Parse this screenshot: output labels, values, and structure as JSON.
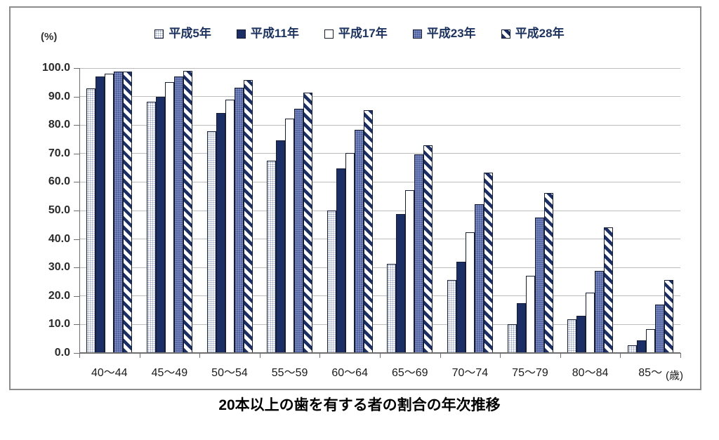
{
  "chart_data": {
    "type": "bar",
    "title": "20本以上の歯を有する者の割合の年次推移",
    "y_unit_label": "(%)",
    "x_unit_label": "(歳)",
    "ylim": [
      0,
      100
    ],
    "ytick_step": 10,
    "ytick_labels": [
      "0.0",
      "10.0",
      "20.0",
      "30.0",
      "40.0",
      "50.0",
      "60.0",
      "70.0",
      "80.0",
      "90.0",
      "100.0"
    ],
    "grid": true,
    "legend_position": "top",
    "categories": [
      "40〜44",
      "45〜49",
      "50〜54",
      "55〜59",
      "60〜64",
      "65〜69",
      "70〜74",
      "75〜79",
      "80〜84",
      "85〜"
    ],
    "series": [
      {
        "name": "平成5年",
        "pattern": "dots-light",
        "values": [
          92.9,
          88.1,
          77.9,
          67.5,
          49.9,
          31.4,
          25.5,
          10.0,
          11.7,
          2.8
        ]
      },
      {
        "name": "平成11年",
        "pattern": "solid-navy",
        "values": [
          97.1,
          90.0,
          84.3,
          74.6,
          64.9,
          48.8,
          31.9,
          17.5,
          13.0,
          4.5
        ]
      },
      {
        "name": "平成17年",
        "pattern": "white",
        "values": [
          98.0,
          95.0,
          88.9,
          82.3,
          70.3,
          57.1,
          42.4,
          27.1,
          21.1,
          8.3
        ]
      },
      {
        "name": "平成23年",
        "pattern": "dots-navy",
        "values": [
          98.7,
          97.1,
          93.0,
          85.7,
          78.4,
          69.6,
          52.3,
          47.6,
          28.9,
          17.0
        ]
      },
      {
        "name": "平成28年",
        "pattern": "hatch-navy",
        "values": [
          98.8,
          99.0,
          95.9,
          91.3,
          85.2,
          73.0,
          63.4,
          56.1,
          44.2,
          25.7
        ]
      }
    ],
    "colors": {
      "navy": "#1b2f66",
      "medium_blue": "#5464a3",
      "light_dot": "#8e9cc0",
      "bar_border": "#141c36",
      "legend_text": "#1c3261",
      "axis_text": "#2b2b2b",
      "gridline": "#bdbdbd",
      "axis_line": "#6e6e6e",
      "frame_border": "#8c8c8c"
    }
  }
}
